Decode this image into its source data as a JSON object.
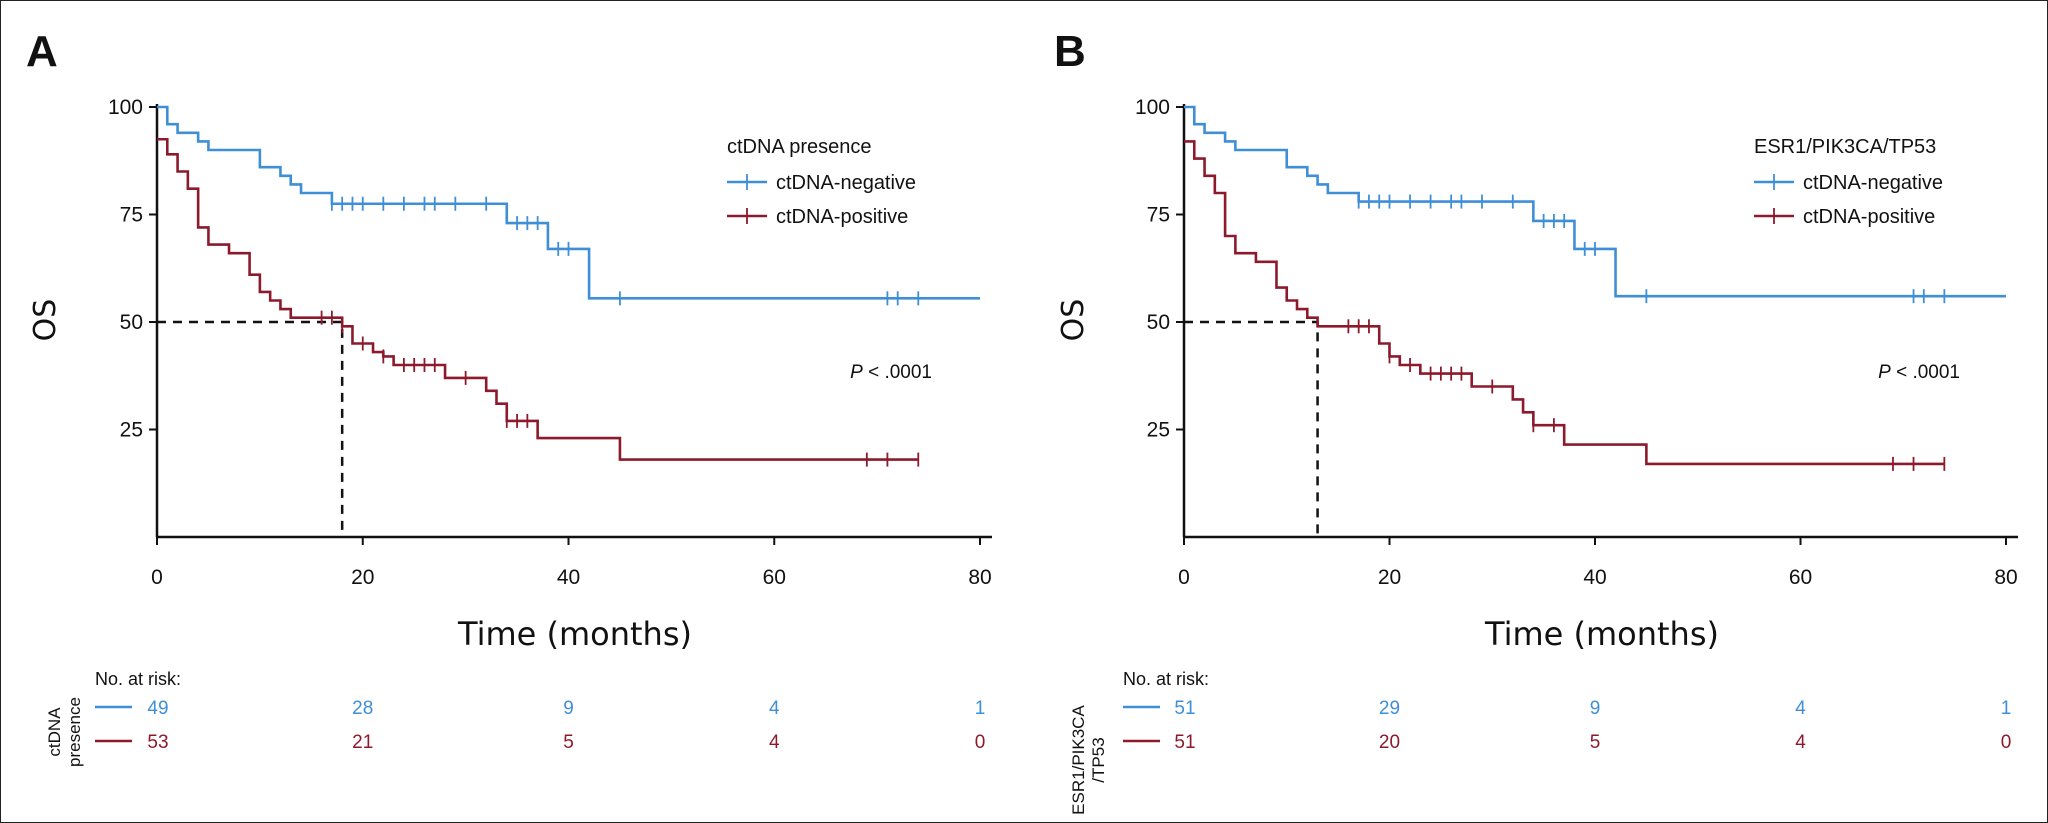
{
  "colors": {
    "negative": "#3f8fd6",
    "positive": "#8c1a2c",
    "axis": "#111111"
  },
  "chart_data": [
    {
      "type": "line",
      "panel": "A",
      "ylabel": "OS",
      "xlabel": "Time (months)",
      "xlim": [
        0,
        80
      ],
      "ylim": [
        0,
        100
      ],
      "xticks": [
        "0",
        "20",
        "40",
        "60",
        "80"
      ],
      "yticks": [
        "100",
        "75",
        "50",
        "25"
      ],
      "legend_title": "ctDNA presence",
      "pvalue": {
        "p": "P",
        "rest": " < .0001"
      },
      "median": {
        "x": 18,
        "y": 50
      },
      "series": [
        {
          "name": "ctDNA-negative",
          "color_key": "negative",
          "steps": [
            [
              0,
              100
            ],
            [
              1,
              96
            ],
            [
              2,
              94
            ],
            [
              4,
              92
            ],
            [
              5,
              90
            ],
            [
              10,
              86
            ],
            [
              12,
              84
            ],
            [
              13,
              82
            ],
            [
              14,
              80
            ],
            [
              17,
              77.5
            ],
            [
              34,
              73
            ],
            [
              38,
              67
            ],
            [
              42,
              55.5
            ],
            [
              80,
              55.5
            ]
          ],
          "censors": [
            [
              17,
              77.5
            ],
            [
              18,
              77.5
            ],
            [
              19,
              77.5
            ],
            [
              20,
              77.5
            ],
            [
              22,
              77.5
            ],
            [
              24,
              77.5
            ],
            [
              26,
              77.5
            ],
            [
              27,
              77.5
            ],
            [
              29,
              77.5
            ],
            [
              32,
              77.5
            ],
            [
              35,
              73
            ],
            [
              36,
              73
            ],
            [
              37,
              73
            ],
            [
              39,
              67
            ],
            [
              40,
              67
            ],
            [
              45,
              55.5
            ],
            [
              71,
              55.5
            ],
            [
              72,
              55.5
            ],
            [
              74,
              55.5
            ]
          ]
        },
        {
          "name": "ctDNA-positive",
          "color_key": "positive",
          "steps": [
            [
              0,
              92.5
            ],
            [
              1,
              89
            ],
            [
              2,
              85
            ],
            [
              3,
              81
            ],
            [
              4,
              72
            ],
            [
              5,
              68
            ],
            [
              7,
              66
            ],
            [
              9,
              61
            ],
            [
              10,
              57
            ],
            [
              11,
              55
            ],
            [
              12,
              53
            ],
            [
              13,
              51
            ],
            [
              18,
              49
            ],
            [
              19,
              45
            ],
            [
              21,
              43
            ],
            [
              22,
              42
            ],
            [
              23,
              40
            ],
            [
              28,
              37
            ],
            [
              31,
              37
            ],
            [
              32,
              34
            ],
            [
              33,
              31
            ],
            [
              34,
              27
            ],
            [
              37,
              23
            ],
            [
              45,
              18
            ],
            [
              74,
              18
            ]
          ],
          "censors": [
            [
              16,
              51
            ],
            [
              17,
              51
            ],
            [
              18,
              49
            ],
            [
              20,
              45
            ],
            [
              22,
              42
            ],
            [
              24,
              40
            ],
            [
              25,
              40
            ],
            [
              26,
              40
            ],
            [
              27,
              40
            ],
            [
              30,
              37
            ],
            [
              34,
              27
            ],
            [
              35,
              27
            ],
            [
              36,
              27
            ],
            [
              69,
              18
            ],
            [
              71,
              18
            ],
            [
              74,
              18
            ]
          ]
        }
      ],
      "risk_table": {
        "title": "No. at risk:",
        "side_label": [
          "ctDNA",
          "presence"
        ],
        "rows": [
          {
            "color_key": "negative",
            "values": [
              "49",
              "28",
              "9",
              "4",
              "1"
            ]
          },
          {
            "color_key": "positive",
            "values": [
              "53",
              "21",
              "5",
              "4",
              "0"
            ]
          }
        ]
      }
    },
    {
      "type": "line",
      "panel": "B",
      "ylabel": "OS",
      "xlabel": "Time (months)",
      "xlim": [
        0,
        80
      ],
      "ylim": [
        0,
        100
      ],
      "xticks": [
        "0",
        "20",
        "40",
        "60",
        "80"
      ],
      "yticks": [
        "100",
        "75",
        "50",
        "25"
      ],
      "legend_title": "ESR1/PIK3CA/TP53",
      "pvalue": {
        "p": "P",
        "rest": " < .0001"
      },
      "median": {
        "x": 13,
        "y": 50
      },
      "series": [
        {
          "name": "ctDNA-negative",
          "color_key": "negative",
          "steps": [
            [
              0,
              100
            ],
            [
              1,
              96
            ],
            [
              2,
              94
            ],
            [
              4,
              92
            ],
            [
              5,
              90
            ],
            [
              10,
              86
            ],
            [
              12,
              84
            ],
            [
              13,
              82
            ],
            [
              14,
              80
            ],
            [
              17,
              78
            ],
            [
              34,
              73.5
            ],
            [
              38,
              67
            ],
            [
              42,
              56
            ],
            [
              80,
              56
            ]
          ],
          "censors": [
            [
              17,
              78
            ],
            [
              18,
              78
            ],
            [
              19,
              78
            ],
            [
              20,
              78
            ],
            [
              22,
              78
            ],
            [
              24,
              78
            ],
            [
              26,
              78
            ],
            [
              27,
              78
            ],
            [
              29,
              78
            ],
            [
              32,
              78
            ],
            [
              35,
              73.5
            ],
            [
              36,
              73.5
            ],
            [
              37,
              73.5
            ],
            [
              39,
              67
            ],
            [
              40,
              67
            ],
            [
              45,
              56
            ],
            [
              71,
              56
            ],
            [
              72,
              56
            ],
            [
              74,
              56
            ]
          ]
        },
        {
          "name": "ctDNA-positive",
          "color_key": "positive",
          "steps": [
            [
              0,
              92
            ],
            [
              1,
              88
            ],
            [
              2,
              84
            ],
            [
              3,
              80
            ],
            [
              4,
              70
            ],
            [
              5,
              66
            ],
            [
              7,
              64
            ],
            [
              9,
              58
            ],
            [
              10,
              55
            ],
            [
              11,
              53
            ],
            [
              12,
              51
            ],
            [
              13,
              49
            ],
            [
              19,
              45
            ],
            [
              20,
              42
            ],
            [
              21,
              40
            ],
            [
              22,
              40
            ],
            [
              23,
              38
            ],
            [
              28,
              35
            ],
            [
              31,
              35
            ],
            [
              32,
              32
            ],
            [
              33,
              29
            ],
            [
              34,
              26
            ],
            [
              37,
              21.5
            ],
            [
              45,
              17
            ],
            [
              74,
              17
            ]
          ],
          "censors": [
            [
              16,
              49
            ],
            [
              17,
              49
            ],
            [
              18,
              49
            ],
            [
              20,
              42
            ],
            [
              22,
              40
            ],
            [
              24,
              38
            ],
            [
              25,
              38
            ],
            [
              26,
              38
            ],
            [
              27,
              38
            ],
            [
              30,
              35
            ],
            [
              34,
              26
            ],
            [
              36,
              26
            ],
            [
              69,
              17
            ],
            [
              71,
              17
            ],
            [
              74,
              17
            ]
          ]
        }
      ],
      "risk_table": {
        "title": "No. at risk:",
        "side_label": [
          "ESR1/PIK3CA",
          "/TP53"
        ],
        "rows": [
          {
            "color_key": "negative",
            "values": [
              "51",
              "29",
              "9",
              "4",
              "1"
            ]
          },
          {
            "color_key": "positive",
            "values": [
              "51",
              "20",
              "5",
              "4",
              "0"
            ]
          }
        ]
      }
    }
  ]
}
